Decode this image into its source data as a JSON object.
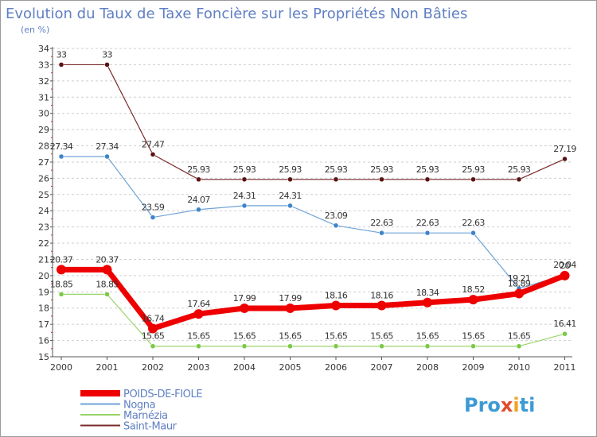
{
  "colors": {
    "title": "#5f7fc4",
    "subtitle": "#5f7fc4",
    "axis": "#555555",
    "grid": "#cfcfcf",
    "tick_label": "#333333",
    "value_label": "#333333",
    "legend_text": "#5f7fc4",
    "logo_dark": "#3d9ad3",
    "logo_accent": "#f0a229",
    "logo_x": "#e24b2a"
  },
  "logo": {
    "text": "Proxiti"
  },
  "chart_data": {
    "type": "line",
    "title": "Evolution du Taux de Taxe Foncière sur les Propriétés Non Bâties",
    "subtitle": "(en %)",
    "xlabel": "",
    "ylabel": "",
    "ylim": [
      15,
      34
    ],
    "yticks": [
      "15",
      "16",
      "17",
      "18",
      "19",
      "20",
      "21",
      "22",
      "23",
      "24",
      "25",
      "26",
      "27",
      "28",
      "29",
      "30",
      "31",
      "32",
      "33",
      "34"
    ],
    "categories": [
      "2000",
      "2001",
      "2002",
      "2003",
      "2004",
      "2005",
      "2006",
      "2007",
      "2008",
      "2009",
      "2010",
      "2011"
    ],
    "grid": "horizontal dashed",
    "legend_position": "bottom-left",
    "series": [
      {
        "name": "Saint-Maur",
        "color": "#7b2a2a",
        "marker_fill": "#5a1212",
        "width": 1.2,
        "values": [
          33,
          33,
          27.47,
          25.93,
          25.93,
          25.93,
          25.93,
          25.93,
          25.93,
          25.93,
          25.93,
          27.19
        ],
        "labels": [
          "33",
          "33",
          "27.47",
          "25.93",
          "25.93",
          "25.93",
          "25.93",
          "25.93",
          "25.93",
          "25.93",
          "25.93",
          "27.19"
        ]
      },
      {
        "name": "Nogna",
        "color": "#6fa3d6",
        "marker_fill": "#3d84c8",
        "width": 1.2,
        "values": [
          27.34,
          27.34,
          23.59,
          24.07,
          24.31,
          24.31,
          23.09,
          22.63,
          22.63,
          22.63,
          19.21,
          20.04
        ],
        "labels": [
          "27.34",
          "27.34",
          "23.59",
          "24.07",
          "24.31",
          "24.31",
          "23.09",
          "22.63",
          "22.63",
          "22.63",
          "19.21",
          "20.04"
        ]
      },
      {
        "name": "Marnézia",
        "color": "#9ad46a",
        "marker_fill": "#7ac943",
        "width": 1.2,
        "values": [
          18.85,
          18.85,
          15.65,
          15.65,
          15.65,
          15.65,
          15.65,
          15.65,
          15.65,
          15.65,
          15.65,
          16.41
        ],
        "labels": [
          "18.85",
          "18.85",
          "15.65",
          "15.65",
          "15.65",
          "15.65",
          "15.65",
          "15.65",
          "15.65",
          "15.65",
          "15.65",
          "16.41"
        ]
      },
      {
        "name": "POIDS-DE-FIOLE",
        "color": "#ee0000",
        "marker_fill": "#ee0000",
        "width": 7,
        "values": [
          20.37,
          20.37,
          16.74,
          17.64,
          17.99,
          17.99,
          18.16,
          18.16,
          18.34,
          18.52,
          18.89,
          20.0
        ],
        "labels": [
          "20.37",
          "20.37",
          "16.74",
          "17.64",
          "17.99",
          "17.99",
          "18.16",
          "18.16",
          "18.34",
          "18.52",
          "18.89",
          "20"
        ]
      }
    ],
    "legend": [
      "POIDS-DE-FIOLE",
      "Nogna",
      "Marnézia",
      "Saint-Maur"
    ]
  }
}
